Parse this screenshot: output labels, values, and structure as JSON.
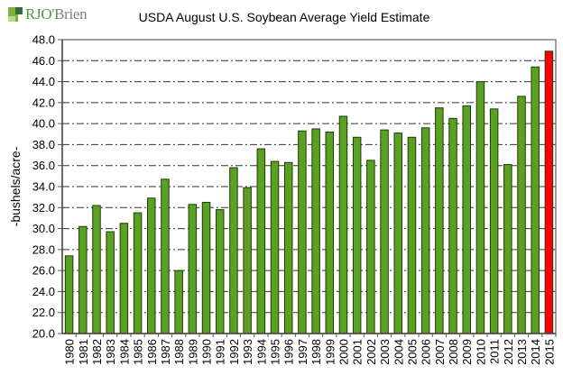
{
  "logo": {
    "text_main": "RJO",
    "text_apostrophe": "'",
    "text_secondary": "Brien"
  },
  "chart_data": {
    "type": "bar",
    "title": "USDA August U.S. Soybean Average Yield Estimate",
    "xlabel": "",
    "ylabel": "-bushels/acre-",
    "ylim": [
      20.0,
      48.0
    ],
    "ytick_step": 2.0,
    "ytick_labels": [
      "20.0",
      "22.0",
      "24.0",
      "26.0",
      "28.0",
      "30.0",
      "32.0",
      "34.0",
      "36.0",
      "38.0",
      "40.0",
      "42.0",
      "44.0",
      "46.0",
      "48.0"
    ],
    "grid": "horizontal dash-dot",
    "legend": "none",
    "categories": [
      "1980",
      "1981",
      "1982",
      "1983",
      "1984",
      "1985",
      "1986",
      "1987",
      "1988",
      "1989",
      "1990",
      "1991",
      "1992",
      "1993",
      "1994",
      "1995",
      "1996",
      "1997",
      "1998",
      "1999",
      "2000",
      "2001",
      "2002",
      "2003",
      "2004",
      "2005",
      "2006",
      "2007",
      "2008",
      "2009",
      "2010",
      "2011",
      "2012",
      "2013",
      "2014",
      "2015"
    ],
    "values": [
      27.4,
      30.2,
      32.2,
      29.7,
      30.5,
      31.5,
      32.9,
      34.7,
      26.0,
      32.3,
      32.5,
      31.8,
      35.8,
      33.9,
      37.6,
      36.4,
      36.3,
      39.3,
      39.5,
      39.2,
      40.7,
      38.7,
      36.5,
      39.4,
      39.1,
      38.7,
      39.6,
      41.5,
      40.5,
      41.7,
      44.0,
      41.4,
      36.1,
      42.6,
      45.4,
      46.9
    ],
    "colors": {
      "default": "#5aa021",
      "highlight": "#ff0000",
      "border": "#1f3a10"
    },
    "highlight_category": "2015"
  }
}
